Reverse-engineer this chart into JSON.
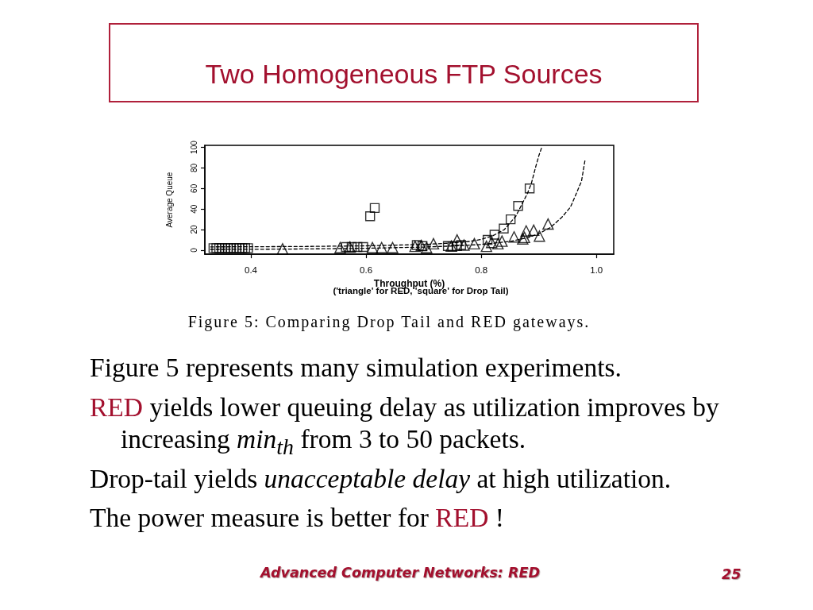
{
  "chart_data": {
    "type": "scatter",
    "title": "Two Homogeneous FTP Sources",
    "xlabel": "Throughput (%)",
    "ylabel": "Average Queue",
    "annotations": [
      "('triangle' for RED, 'square' for Drop Tail)",
      "Figure 5: Comparing Drop Tail and RED gateways.",
      "Figure 5 represents many simulation experiments.",
      "RED",
      "yields lower queuing delay as utilization improves by",
      "increasing",
      "min$_{th}$",
      "from 3 to 50 packets.",
      "Drop-tail yields",
      "unacceptable delay",
      "at high utilization.",
      "The power measure is better for",
      "RED",
      "!",
      "Advanced Computer Networks: RED",
      "25"
    ],
    "xlim": [
      0.32,
      1.03
    ],
    "xticks": [
      0.4,
      0.6,
      0.8,
      {
        "value": 1,
        "label": "1.0"
      }
    ],
    "ylim": [
      -4,
      102
    ],
    "yticks": [
      0,
      20,
      40,
      60,
      80,
      100
    ],
    "series": [
      {
        "type": "line",
        "color": "#000000",
        "marker": "none",
        "line_style": "dashed",
        "x": [
          0.33,
          0.4,
          0.5,
          0.6,
          0.7,
          0.75,
          0.78,
          0.8,
          0.82,
          0.84,
          0.86,
          0.88,
          0.887,
          0.894,
          0.9,
          0.905
        ],
        "values": [
          3.2,
          3.3,
          3.6,
          4.2,
          5.5,
          7,
          8.5,
          10.5,
          14,
          20,
          33,
          55,
          65,
          80,
          92,
          100
        ]
      },
      {
        "type": "line",
        "color": "#000000",
        "marker": "none",
        "line_style": "dashed",
        "x": [
          0.33,
          0.4,
          0.5,
          0.6,
          0.7,
          0.75,
          0.8,
          0.85,
          0.88,
          0.9,
          0.92,
          0.94,
          0.955,
          0.965,
          0.974,
          0.98
        ],
        "values": [
          0.7,
          0.8,
          1.2,
          1.8,
          3,
          4,
          5.5,
          8.5,
          12,
          16,
          22,
          32,
          42,
          55,
          67,
          87
        ]
      },
      {
        "color": "#000000",
        "marker": "square",
        "x": [
          0.335,
          0.34,
          0.345,
          0.35,
          0.355,
          0.36,
          0.365,
          0.37,
          0.375,
          0.38,
          0.385,
          0.39,
          0.395,
          0.565,
          0.575,
          0.585,
          0.595,
          0.607,
          0.615,
          0.688,
          0.698,
          0.742,
          0.75,
          0.758,
          0.765,
          0.811,
          0.823,
          0.839,
          0.851,
          0.864,
          0.884
        ],
        "values": [
          2,
          2,
          2,
          2,
          2,
          2,
          2,
          2,
          2,
          2,
          2,
          2,
          2,
          3,
          3,
          3,
          3,
          33,
          41,
          5,
          4,
          4,
          3.5,
          4,
          5,
          10,
          15,
          21,
          30,
          43,
          60
        ]
      },
      {
        "color": "#000000",
        "marker": "triangle",
        "x": [
          0.455,
          0.555,
          0.572,
          0.611,
          0.627,
          0.646,
          0.685,
          0.696,
          0.705,
          0.717,
          0.748,
          0.758,
          0.77,
          0.788,
          0.809,
          0.818,
          0.829,
          0.836,
          0.857,
          0.872,
          0.875,
          0.878,
          0.891,
          0.901,
          0.916
        ],
        "values": [
          1.2,
          2.5,
          3,
          2.5,
          2.5,
          2.5,
          3.7,
          4.5,
          2.5,
          6.2,
          4,
          9.9,
          5,
          6.2,
          3.7,
          7.5,
          6.2,
          8.7,
          12.9,
          11,
          12.4,
          18.7,
          19.4,
          13.7,
          25.4
        ]
      }
    ]
  }
}
